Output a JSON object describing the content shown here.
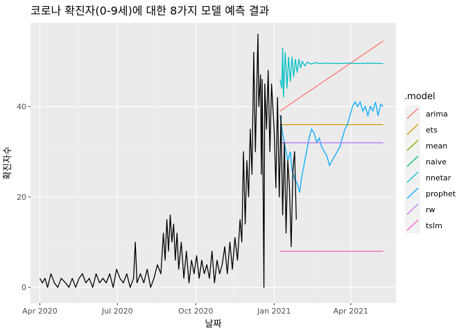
{
  "chart_data": {
    "type": "line",
    "title": "코로나 확진자(0-9세)에 대한 8가지 모델 예측 결과",
    "xlabel": "날짜",
    "ylabel": "확진자수",
    "x_ticks": [
      {
        "label": "Apr 2020",
        "date": "2020-04-01"
      },
      {
        "label": "Jul 2020",
        "date": "2020-07-01"
      },
      {
        "label": "Oct 2020",
        "date": "2020-10-01"
      },
      {
        "label": "Jan 2021",
        "date": "2021-01-01"
      },
      {
        "label": "Apr 2021",
        "date": "2021-04-01"
      }
    ],
    "x_range": [
      "2020-03-21",
      "2021-05-24"
    ],
    "y_ticks": [
      0,
      20,
      40
    ],
    "y_range": [
      -3.5,
      58.5
    ],
    "grid": true,
    "legend_title": ".model",
    "legend_position": "right",
    "actual": {
      "color": "#000000",
      "points": [
        [
          "2020-04-01",
          2
        ],
        [
          "2020-04-04",
          1
        ],
        [
          "2020-04-07",
          2
        ],
        [
          "2020-04-10",
          0
        ],
        [
          "2020-04-14",
          3
        ],
        [
          "2020-04-18",
          1
        ],
        [
          "2020-04-22",
          0
        ],
        [
          "2020-04-26",
          2
        ],
        [
          "2020-05-01",
          1
        ],
        [
          "2020-05-05",
          0
        ],
        [
          "2020-05-09",
          2
        ],
        [
          "2020-05-13",
          0
        ],
        [
          "2020-05-17",
          2
        ],
        [
          "2020-05-21",
          3
        ],
        [
          "2020-05-25",
          1
        ],
        [
          "2020-05-29",
          2
        ],
        [
          "2020-06-02",
          0
        ],
        [
          "2020-06-06",
          3
        ],
        [
          "2020-06-10",
          1
        ],
        [
          "2020-06-14",
          2
        ],
        [
          "2020-06-18",
          1
        ],
        [
          "2020-06-22",
          3
        ],
        [
          "2020-06-26",
          0
        ],
        [
          "2020-06-30",
          4
        ],
        [
          "2020-07-04",
          2
        ],
        [
          "2020-07-08",
          1
        ],
        [
          "2020-07-12",
          3
        ],
        [
          "2020-07-16",
          0
        ],
        [
          "2020-07-20",
          2
        ],
        [
          "2020-07-22",
          10
        ],
        [
          "2020-07-24",
          1
        ],
        [
          "2020-07-28",
          3
        ],
        [
          "2020-08-01",
          1
        ],
        [
          "2020-08-05",
          4
        ],
        [
          "2020-08-09",
          0
        ],
        [
          "2020-08-13",
          2
        ],
        [
          "2020-08-17",
          5
        ],
        [
          "2020-08-21",
          3
        ],
        [
          "2020-08-24",
          12
        ],
        [
          "2020-08-26",
          6
        ],
        [
          "2020-08-28",
          15
        ],
        [
          "2020-08-30",
          8
        ],
        [
          "2020-09-01",
          16
        ],
        [
          "2020-09-03",
          10
        ],
        [
          "2020-09-05",
          14
        ],
        [
          "2020-09-07",
          6
        ],
        [
          "2020-09-09",
          12
        ],
        [
          "2020-09-11",
          4
        ],
        [
          "2020-09-14",
          10
        ],
        [
          "2020-09-17",
          2
        ],
        [
          "2020-09-20",
          8
        ],
        [
          "2020-09-23",
          1
        ],
        [
          "2020-09-26",
          6
        ],
        [
          "2020-09-29",
          3
        ],
        [
          "2020-10-02",
          7
        ],
        [
          "2020-10-05",
          2
        ],
        [
          "2020-10-08",
          6
        ],
        [
          "2020-10-11",
          3
        ],
        [
          "2020-10-14",
          5
        ],
        [
          "2020-10-17",
          2
        ],
        [
          "2020-10-20",
          8
        ],
        [
          "2020-10-23",
          1
        ],
        [
          "2020-10-26",
          6
        ],
        [
          "2020-10-29",
          3
        ],
        [
          "2020-11-01",
          5
        ],
        [
          "2020-11-04",
          9
        ],
        [
          "2020-11-07",
          3
        ],
        [
          "2020-11-10",
          10
        ],
        [
          "2020-11-13",
          4
        ],
        [
          "2020-11-16",
          11
        ],
        [
          "2020-11-19",
          6
        ],
        [
          "2020-11-22",
          15
        ],
        [
          "2020-11-24",
          10
        ],
        [
          "2020-11-26",
          30
        ],
        [
          "2020-11-28",
          14
        ],
        [
          "2020-11-30",
          28
        ],
        [
          "2020-12-02",
          20
        ],
        [
          "2020-12-04",
          35
        ],
        [
          "2020-12-06",
          25
        ],
        [
          "2020-12-08",
          52
        ],
        [
          "2020-12-10",
          30
        ],
        [
          "2020-12-12",
          48
        ],
        [
          "2020-12-13",
          56
        ],
        [
          "2020-12-14",
          40
        ],
        [
          "2020-12-16",
          47
        ],
        [
          "2020-12-17",
          25
        ],
        [
          "2020-12-18",
          46
        ],
        [
          "2020-12-20",
          0
        ],
        [
          "2020-12-21",
          45
        ],
        [
          "2020-12-23",
          35
        ],
        [
          "2020-12-25",
          48
        ],
        [
          "2020-12-27",
          30
        ],
        [
          "2020-12-29",
          45
        ],
        [
          "2021-01-01",
          35
        ],
        [
          "2021-01-03",
          22
        ],
        [
          "2021-01-05",
          42
        ],
        [
          "2021-01-07",
          20
        ],
        [
          "2021-01-09",
          38
        ],
        [
          "2021-01-11",
          16
        ],
        [
          "2021-01-13",
          32
        ],
        [
          "2021-01-15",
          12
        ],
        [
          "2021-01-17",
          28
        ],
        [
          "2021-01-19",
          22
        ],
        [
          "2021-01-21",
          9
        ],
        [
          "2021-01-23",
          26
        ],
        [
          "2021-01-25",
          30
        ],
        [
          "2021-01-27",
          15
        ]
      ]
    },
    "series": [
      {
        "name": "arima",
        "color": "#F8766D",
        "points": [
          [
            "2021-01-08",
            39
          ],
          [
            "2021-05-09",
            54.5
          ]
        ]
      },
      {
        "name": "ets",
        "color": "#CD9600",
        "points": [
          [
            "2021-01-08",
            36
          ],
          [
            "2021-05-09",
            36
          ]
        ]
      },
      {
        "name": "mean",
        "color": "#7CAE00",
        "points": [
          [
            "2021-01-08",
            8
          ],
          [
            "2021-05-09",
            8
          ]
        ]
      },
      {
        "name": "naive",
        "color": "#00BE67",
        "points": [
          [
            "2021-01-08",
            32
          ],
          [
            "2021-05-09",
            32
          ]
        ]
      },
      {
        "name": "nnetar",
        "color": "#00BFC4",
        "points": [
          [
            "2021-01-08",
            46
          ],
          [
            "2021-01-10",
            44
          ],
          [
            "2021-01-11",
            53
          ],
          [
            "2021-01-12",
            42
          ],
          [
            "2021-01-14",
            52
          ],
          [
            "2021-01-16",
            44
          ],
          [
            "2021-01-18",
            51
          ],
          [
            "2021-01-20",
            45.5
          ],
          [
            "2021-01-22",
            51
          ],
          [
            "2021-01-24",
            46.5
          ],
          [
            "2021-01-26",
            50.5
          ],
          [
            "2021-01-28",
            47.5
          ],
          [
            "2021-01-30",
            50.5
          ],
          [
            "2021-02-01",
            48.5
          ],
          [
            "2021-02-03",
            50
          ],
          [
            "2021-02-06",
            49
          ],
          [
            "2021-02-09",
            49.8
          ],
          [
            "2021-02-13",
            49.4
          ],
          [
            "2021-02-18",
            49.7
          ],
          [
            "2021-02-24",
            49.5
          ],
          [
            "2021-03-05",
            49.6
          ],
          [
            "2021-03-15",
            49.5
          ],
          [
            "2021-03-28",
            49.6
          ],
          [
            "2021-04-10",
            49.5
          ],
          [
            "2021-04-24",
            49.6
          ],
          [
            "2021-05-09",
            49.5
          ]
        ]
      },
      {
        "name": "prophet",
        "color": "#00A9FF",
        "points": [
          [
            "2021-01-08",
            38
          ],
          [
            "2021-01-11",
            34
          ],
          [
            "2021-01-14",
            31
          ],
          [
            "2021-01-17",
            28
          ],
          [
            "2021-01-20",
            30
          ],
          [
            "2021-01-22",
            26
          ],
          [
            "2021-01-25",
            24
          ],
          [
            "2021-01-28",
            23
          ],
          [
            "2021-01-31",
            21
          ],
          [
            "2021-02-02",
            24
          ],
          [
            "2021-02-05",
            27
          ],
          [
            "2021-02-08",
            30
          ],
          [
            "2021-02-11",
            33
          ],
          [
            "2021-02-14",
            35
          ],
          [
            "2021-02-17",
            34
          ],
          [
            "2021-02-20",
            32
          ],
          [
            "2021-02-23",
            33
          ],
          [
            "2021-02-26",
            31
          ],
          [
            "2021-03-01",
            30
          ],
          [
            "2021-03-04",
            29
          ],
          [
            "2021-03-07",
            27
          ],
          [
            "2021-03-10",
            28
          ],
          [
            "2021-03-13",
            29
          ],
          [
            "2021-03-16",
            30
          ],
          [
            "2021-03-19",
            31
          ],
          [
            "2021-03-22",
            33
          ],
          [
            "2021-03-25",
            35
          ],
          [
            "2021-03-28",
            36
          ],
          [
            "2021-03-31",
            38
          ],
          [
            "2021-04-03",
            40
          ],
          [
            "2021-04-06",
            41
          ],
          [
            "2021-04-09",
            40
          ],
          [
            "2021-04-12",
            41
          ],
          [
            "2021-04-15",
            39
          ],
          [
            "2021-04-18",
            40
          ],
          [
            "2021-04-21",
            38
          ],
          [
            "2021-04-24",
            40
          ],
          [
            "2021-04-27",
            39
          ],
          [
            "2021-04-30",
            41
          ],
          [
            "2021-05-03",
            38
          ],
          [
            "2021-05-06",
            40.5
          ],
          [
            "2021-05-09",
            40
          ]
        ]
      },
      {
        "name": "rw",
        "color": "#C77CFF",
        "points": [
          [
            "2021-01-08",
            32
          ],
          [
            "2021-05-09",
            32
          ]
        ]
      },
      {
        "name": "tslm",
        "color": "#FF61CC",
        "points": [
          [
            "2021-01-08",
            8
          ],
          [
            "2021-05-09",
            8
          ]
        ]
      }
    ]
  }
}
